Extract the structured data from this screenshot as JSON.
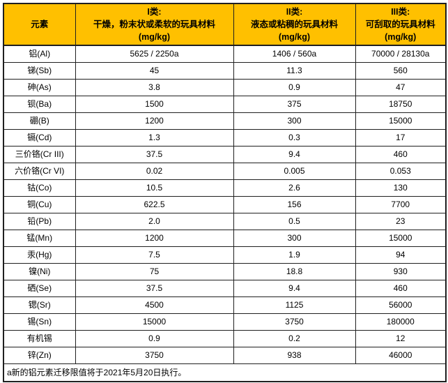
{
  "colors": {
    "header_bg": "#ffc000",
    "border": "#1f1f1f",
    "text": "#000000",
    "row_bg": "#ffffff"
  },
  "table": {
    "header": {
      "element_col": "元素",
      "classes": [
        {
          "title": "I类:",
          "desc": "干燥，粉末状或柔软的玩具材料",
          "unit": "(mg/kg)"
        },
        {
          "title": "II类:",
          "desc": "液态或粘稠的玩具材料",
          "unit": "(mg/kg)"
        },
        {
          "title": "III类:",
          "desc": "可刮取的玩具材料",
          "unit": "(mg/kg)"
        }
      ]
    },
    "rows": [
      {
        "element": "铝(Al)",
        "values": [
          "5625 / 2250a",
          "1406 / 560a",
          "70000 / 28130a"
        ]
      },
      {
        "element": "锑(Sb)",
        "values": [
          "45",
          "11.3",
          "560"
        ]
      },
      {
        "element": "砷(As)",
        "values": [
          "3.8",
          "0.9",
          "47"
        ]
      },
      {
        "element": "钡(Ba)",
        "values": [
          "1500",
          "375",
          "18750"
        ]
      },
      {
        "element": "硼(B)",
        "values": [
          "1200",
          "300",
          "15000"
        ]
      },
      {
        "element": "镉(Cd)",
        "values": [
          "1.3",
          "0.3",
          "17"
        ]
      },
      {
        "element": "三价铬(Cr III)",
        "values": [
          "37.5",
          "9.4",
          "460"
        ]
      },
      {
        "element": "六价铬(Cr VI)",
        "values": [
          "0.02",
          "0.005",
          "0.053"
        ]
      },
      {
        "element": "钴(Co)",
        "values": [
          "10.5",
          "2.6",
          "130"
        ]
      },
      {
        "element": "铜(Cu)",
        "values": [
          "622.5",
          "156",
          "7700"
        ]
      },
      {
        "element": "铅(Pb)",
        "values": [
          "2.0",
          "0.5",
          "23"
        ]
      },
      {
        "element": "锰(Mn)",
        "values": [
          "1200",
          "300",
          "15000"
        ]
      },
      {
        "element": "汞(Hg)",
        "values": [
          "7.5",
          "1.9",
          "94"
        ]
      },
      {
        "element": "镍(Ni)",
        "values": [
          "75",
          "18.8",
          "930"
        ]
      },
      {
        "element": "硒(Se)",
        "values": [
          "37.5",
          "9.4",
          "460"
        ]
      },
      {
        "element": "锶(Sr)",
        "values": [
          "4500",
          "1125",
          "56000"
        ]
      },
      {
        "element": "锡(Sn)",
        "values": [
          "15000",
          "3750",
          "180000"
        ]
      },
      {
        "element": "有机锡",
        "values": [
          "0.9",
          "0.2",
          "12"
        ]
      },
      {
        "element": "锌(Zn)",
        "values": [
          "3750",
          "938",
          "46000"
        ]
      }
    ],
    "footnote": "a新的铝元素迁移限值将于2021年5月20日执行。"
  }
}
